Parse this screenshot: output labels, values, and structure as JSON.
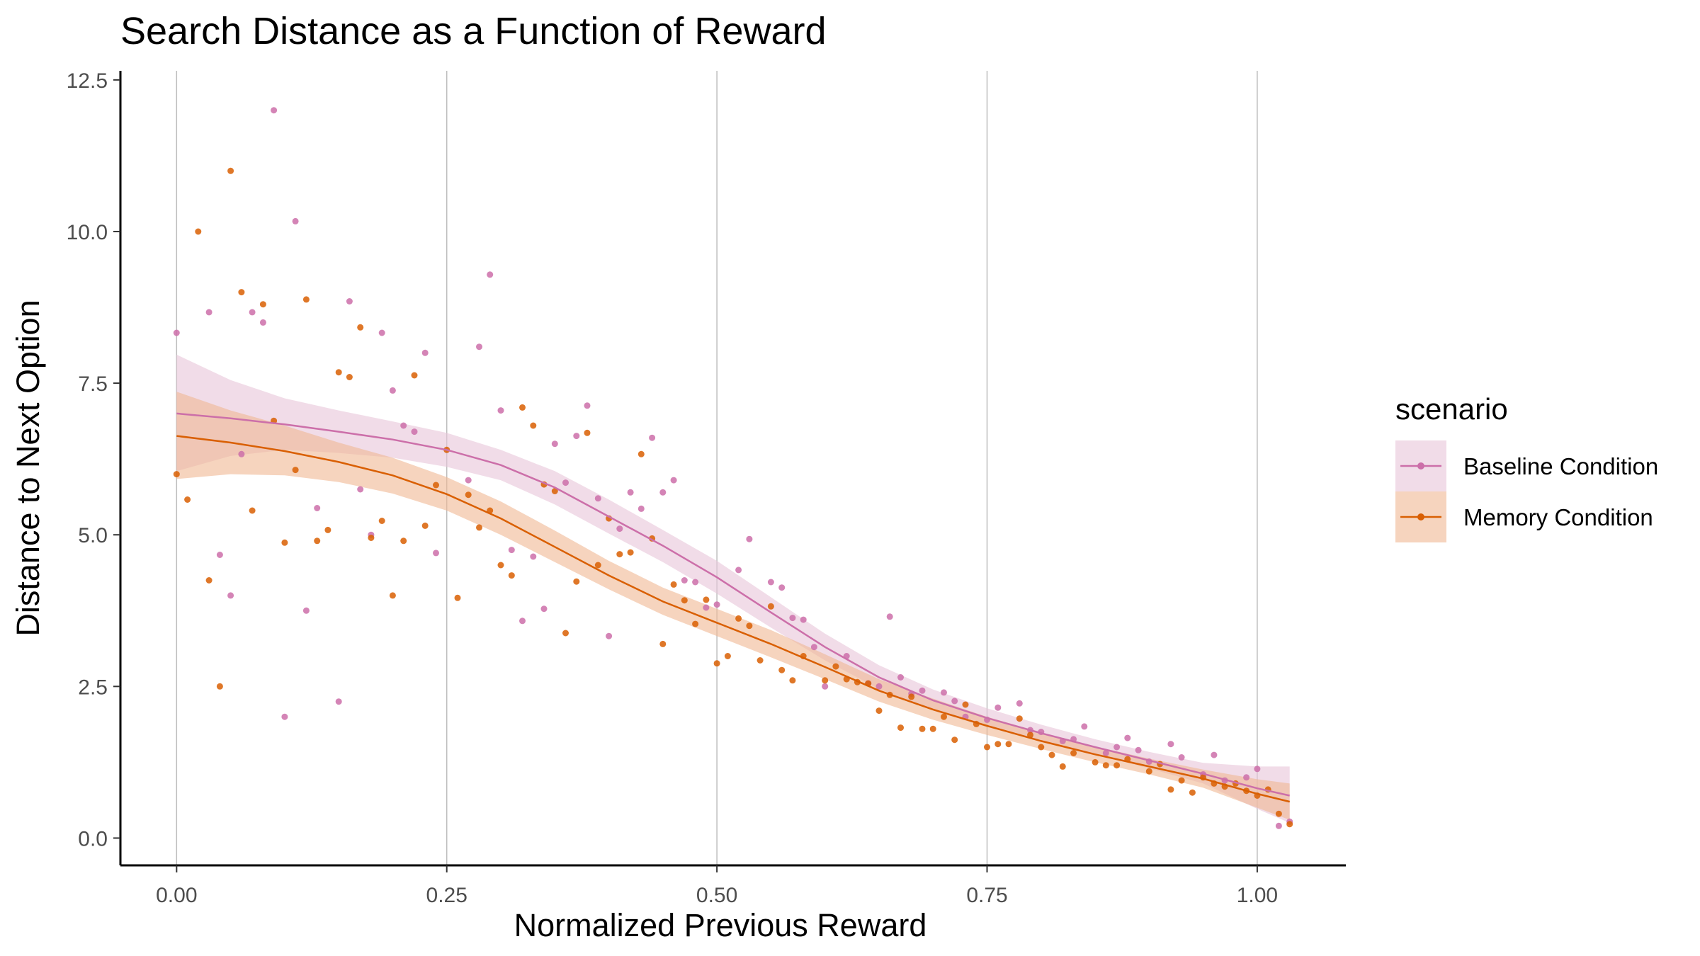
{
  "chart_data": {
    "type": "scatter",
    "title": "Search Distance as a Function of Reward",
    "xlabel": "Normalized Previous Reward",
    "ylabel": "Distance to Next Option",
    "xlim": [
      -0.052,
      1.082
    ],
    "ylim": [
      -0.45,
      12.65
    ],
    "x_ticks": [
      0,
      0.25,
      0.5,
      0.75,
      1
    ],
    "x_tick_labels": [
      "0.00",
      "0.25",
      "0.50",
      "0.75",
      "1.00"
    ],
    "y_ticks": [
      0,
      2.5,
      5,
      7.5,
      10,
      12.5
    ],
    "y_tick_labels": [
      "0.0",
      "2.5",
      "5.0",
      "7.5",
      "10.0",
      "12.5"
    ],
    "grid": "vertical major lines",
    "legend": {
      "title": "scenario",
      "position": "right"
    },
    "series": [
      {
        "name": "Baseline Condition",
        "color": "#cc6fa9",
        "band_color": "#e8c4d9",
        "points": [
          [
            0.0,
            8.33
          ],
          [
            0.03,
            8.67
          ],
          [
            0.04,
            4.67
          ],
          [
            0.05,
            4.0
          ],
          [
            0.06,
            6.33
          ],
          [
            0.07,
            8.67
          ],
          [
            0.08,
            8.5
          ],
          [
            0.09,
            12.0
          ],
          [
            0.1,
            2.0
          ],
          [
            0.11,
            10.17
          ],
          [
            0.12,
            3.75
          ],
          [
            0.13,
            5.44
          ],
          [
            0.15,
            2.25
          ],
          [
            0.16,
            8.85
          ],
          [
            0.17,
            5.75
          ],
          [
            0.18,
            5.0
          ],
          [
            0.19,
            8.33
          ],
          [
            0.2,
            7.38
          ],
          [
            0.21,
            6.8
          ],
          [
            0.22,
            6.7
          ],
          [
            0.23,
            8.0
          ],
          [
            0.24,
            4.7
          ],
          [
            0.27,
            5.9
          ],
          [
            0.28,
            8.1
          ],
          [
            0.29,
            9.29
          ],
          [
            0.3,
            7.05
          ],
          [
            0.31,
            4.75
          ],
          [
            0.32,
            3.58
          ],
          [
            0.33,
            4.64
          ],
          [
            0.34,
            3.78
          ],
          [
            0.35,
            6.5
          ],
          [
            0.36,
            5.86
          ],
          [
            0.37,
            6.63
          ],
          [
            0.38,
            7.13
          ],
          [
            0.39,
            5.6
          ],
          [
            0.4,
            3.33
          ],
          [
            0.41,
            5.1
          ],
          [
            0.42,
            5.7
          ],
          [
            0.43,
            5.43
          ],
          [
            0.44,
            6.6
          ],
          [
            0.45,
            5.7
          ],
          [
            0.46,
            5.9
          ],
          [
            0.47,
            4.25
          ],
          [
            0.48,
            4.22
          ],
          [
            0.49,
            3.8
          ],
          [
            0.5,
            3.85
          ],
          [
            0.52,
            4.42
          ],
          [
            0.53,
            4.93
          ],
          [
            0.55,
            4.22
          ],
          [
            0.56,
            4.13
          ],
          [
            0.57,
            3.63
          ],
          [
            0.58,
            3.6
          ],
          [
            0.59,
            3.15
          ],
          [
            0.6,
            2.5
          ],
          [
            0.62,
            3.0
          ],
          [
            0.64,
            2.55
          ],
          [
            0.65,
            2.5
          ],
          [
            0.66,
            3.65
          ],
          [
            0.67,
            2.65
          ],
          [
            0.68,
            2.38
          ],
          [
            0.69,
            2.43
          ],
          [
            0.71,
            2.4
          ],
          [
            0.72,
            2.26
          ],
          [
            0.73,
            2.0
          ],
          [
            0.75,
            1.95
          ],
          [
            0.76,
            2.15
          ],
          [
            0.78,
            2.22
          ],
          [
            0.79,
            1.78
          ],
          [
            0.8,
            1.75
          ],
          [
            0.82,
            1.6
          ],
          [
            0.83,
            1.63
          ],
          [
            0.84,
            1.84
          ],
          [
            0.86,
            1.4
          ],
          [
            0.87,
            1.5
          ],
          [
            0.88,
            1.65
          ],
          [
            0.89,
            1.45
          ],
          [
            0.9,
            1.26
          ],
          [
            0.92,
            1.55
          ],
          [
            0.93,
            1.33
          ],
          [
            0.95,
            1.05
          ],
          [
            0.96,
            1.37
          ],
          [
            0.97,
            0.95
          ],
          [
            0.99,
            1.0
          ],
          [
            1.0,
            1.14
          ],
          [
            1.02,
            0.2
          ],
          [
            1.03,
            0.27
          ]
        ],
        "fit": {
          "x": [
            0.0,
            0.05,
            0.1,
            0.15,
            0.2,
            0.25,
            0.3,
            0.35,
            0.4,
            0.45,
            0.5,
            0.55,
            0.6,
            0.65,
            0.7,
            0.75,
            0.8,
            0.85,
            0.9,
            0.95,
            1.0,
            1.03
          ],
          "y": [
            7.0,
            6.92,
            6.82,
            6.7,
            6.57,
            6.4,
            6.15,
            5.78,
            5.3,
            4.82,
            4.3,
            3.72,
            3.15,
            2.65,
            2.27,
            1.98,
            1.73,
            1.5,
            1.28,
            1.06,
            0.82,
            0.7
          ],
          "lower": [
            6.05,
            6.3,
            6.4,
            6.35,
            6.27,
            6.12,
            5.9,
            5.5,
            5.02,
            4.55,
            4.03,
            3.47,
            2.93,
            2.46,
            2.1,
            1.83,
            1.6,
            1.38,
            1.15,
            0.9,
            0.48,
            0.25
          ],
          "upper": [
            7.97,
            7.55,
            7.25,
            7.05,
            6.87,
            6.68,
            6.4,
            6.05,
            5.58,
            5.08,
            4.57,
            3.97,
            3.37,
            2.85,
            2.45,
            2.14,
            1.87,
            1.63,
            1.42,
            1.24,
            1.18,
            1.18
          ]
        }
      },
      {
        "name": "Memory Condition",
        "color": "#d95f02",
        "band_color": "#f0b892",
        "points": [
          [
            0.0,
            6.0
          ],
          [
            0.01,
            5.58
          ],
          [
            0.02,
            10.0
          ],
          [
            0.03,
            4.25
          ],
          [
            0.04,
            2.5
          ],
          [
            0.05,
            11.0
          ],
          [
            0.06,
            9.0
          ],
          [
            0.07,
            5.4
          ],
          [
            0.08,
            8.8
          ],
          [
            0.09,
            6.88
          ],
          [
            0.1,
            4.87
          ],
          [
            0.11,
            6.07
          ],
          [
            0.12,
            8.88
          ],
          [
            0.13,
            4.9
          ],
          [
            0.14,
            5.08
          ],
          [
            0.15,
            7.68
          ],
          [
            0.16,
            7.6
          ],
          [
            0.17,
            8.42
          ],
          [
            0.18,
            4.95
          ],
          [
            0.19,
            5.23
          ],
          [
            0.2,
            4.0
          ],
          [
            0.21,
            4.9
          ],
          [
            0.22,
            7.63
          ],
          [
            0.23,
            5.15
          ],
          [
            0.24,
            5.82
          ],
          [
            0.25,
            6.4
          ],
          [
            0.26,
            3.96
          ],
          [
            0.27,
            5.66
          ],
          [
            0.28,
            5.12
          ],
          [
            0.29,
            5.4
          ],
          [
            0.3,
            4.5
          ],
          [
            0.31,
            4.33
          ],
          [
            0.32,
            7.1
          ],
          [
            0.33,
            6.8
          ],
          [
            0.34,
            5.83
          ],
          [
            0.35,
            5.72
          ],
          [
            0.36,
            3.38
          ],
          [
            0.37,
            4.23
          ],
          [
            0.38,
            6.68
          ],
          [
            0.39,
            4.5
          ],
          [
            0.4,
            5.27
          ],
          [
            0.41,
            4.68
          ],
          [
            0.42,
            4.71
          ],
          [
            0.43,
            6.33
          ],
          [
            0.44,
            4.94
          ],
          [
            0.45,
            3.2
          ],
          [
            0.46,
            4.18
          ],
          [
            0.47,
            3.92
          ],
          [
            0.48,
            3.53
          ],
          [
            0.49,
            3.93
          ],
          [
            0.5,
            2.88
          ],
          [
            0.51,
            3.0
          ],
          [
            0.52,
            3.62
          ],
          [
            0.53,
            3.5
          ],
          [
            0.54,
            2.93
          ],
          [
            0.55,
            3.82
          ],
          [
            0.56,
            2.77
          ],
          [
            0.57,
            2.6
          ],
          [
            0.58,
            3.0
          ],
          [
            0.6,
            2.6
          ],
          [
            0.61,
            2.83
          ],
          [
            0.62,
            2.62
          ],
          [
            0.63,
            2.57
          ],
          [
            0.64,
            2.55
          ],
          [
            0.65,
            2.1
          ],
          [
            0.66,
            2.36
          ],
          [
            0.67,
            1.82
          ],
          [
            0.68,
            2.33
          ],
          [
            0.69,
            1.8
          ],
          [
            0.7,
            1.8
          ],
          [
            0.71,
            2.0
          ],
          [
            0.72,
            1.62
          ],
          [
            0.73,
            2.2
          ],
          [
            0.74,
            1.88
          ],
          [
            0.75,
            1.5
          ],
          [
            0.76,
            1.55
          ],
          [
            0.77,
            1.55
          ],
          [
            0.78,
            1.97
          ],
          [
            0.79,
            1.7
          ],
          [
            0.8,
            1.5
          ],
          [
            0.81,
            1.37
          ],
          [
            0.82,
            1.18
          ],
          [
            0.83,
            1.4
          ],
          [
            0.85,
            1.25
          ],
          [
            0.86,
            1.2
          ],
          [
            0.87,
            1.2
          ],
          [
            0.88,
            1.3
          ],
          [
            0.9,
            1.1
          ],
          [
            0.91,
            1.22
          ],
          [
            0.92,
            0.8
          ],
          [
            0.93,
            0.95
          ],
          [
            0.94,
            0.75
          ],
          [
            0.95,
            1.0
          ],
          [
            0.96,
            0.9
          ],
          [
            0.97,
            0.85
          ],
          [
            0.98,
            0.9
          ],
          [
            0.99,
            0.78
          ],
          [
            1.0,
            0.7
          ],
          [
            1.01,
            0.8
          ],
          [
            1.02,
            0.4
          ],
          [
            1.03,
            0.23
          ]
        ],
        "fit": {
          "x": [
            0.0,
            0.05,
            0.1,
            0.15,
            0.2,
            0.25,
            0.3,
            0.35,
            0.4,
            0.45,
            0.5,
            0.55,
            0.6,
            0.65,
            0.7,
            0.75,
            0.8,
            0.85,
            0.9,
            0.95,
            1.0,
            1.03
          ],
          "y": [
            6.63,
            6.52,
            6.38,
            6.2,
            5.98,
            5.67,
            5.27,
            4.8,
            4.33,
            3.9,
            3.55,
            3.2,
            2.82,
            2.43,
            2.12,
            1.85,
            1.6,
            1.38,
            1.18,
            0.98,
            0.73,
            0.6
          ],
          "lower": [
            5.92,
            6.0,
            5.98,
            5.87,
            5.68,
            5.4,
            5.0,
            4.55,
            4.1,
            3.68,
            3.33,
            2.98,
            2.62,
            2.25,
            1.95,
            1.7,
            1.47,
            1.25,
            1.05,
            0.83,
            0.5,
            0.3
          ],
          "upper": [
            7.36,
            7.05,
            6.8,
            6.52,
            6.27,
            5.95,
            5.55,
            5.07,
            4.57,
            4.13,
            3.78,
            3.43,
            3.03,
            2.62,
            2.3,
            2.0,
            1.74,
            1.51,
            1.31,
            1.13,
            0.97,
            0.9
          ]
        }
      }
    ]
  }
}
